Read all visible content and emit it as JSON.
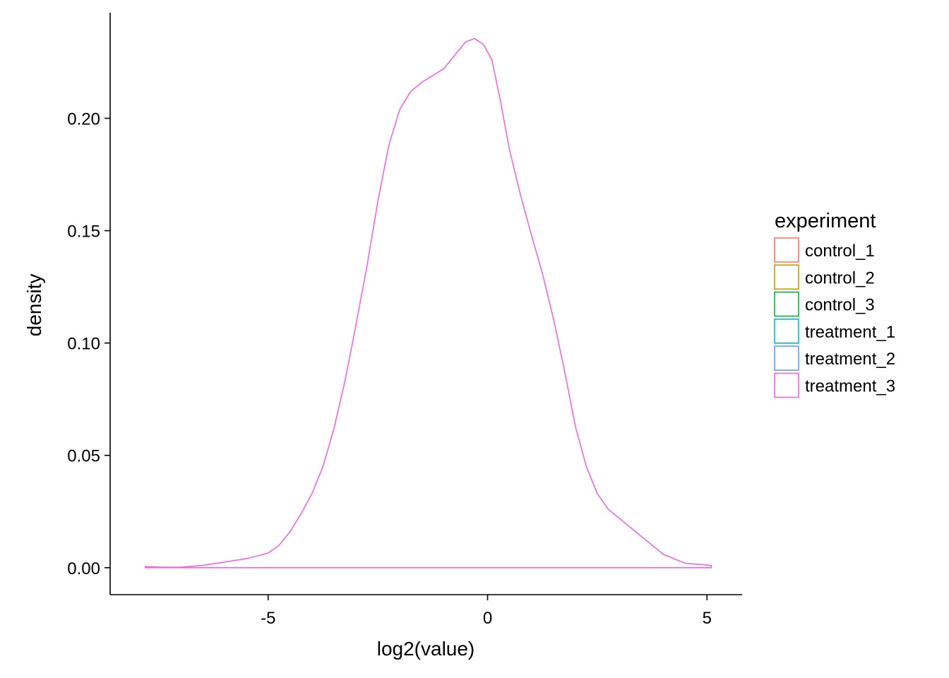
{
  "chart_data": {
    "type": "line",
    "xlabel": "log2(value)",
    "ylabel": "density",
    "xlim": [
      -8.6,
      5.8
    ],
    "ylim": [
      -0.012,
      0.247
    ],
    "x_ticks": [
      -5,
      0,
      5
    ],
    "x_tick_labels": [
      "-5",
      "0",
      "5"
    ],
    "y_ticks": [
      0.0,
      0.05,
      0.1,
      0.15,
      0.2
    ],
    "y_tick_labels": [
      "0.00",
      "0.05",
      "0.10",
      "0.15",
      "0.20"
    ],
    "grid": false,
    "legend": {
      "title": "experiment",
      "placement": "right",
      "entries": [
        {
          "name": "control_1",
          "color": "#F8766D"
        },
        {
          "name": "control_2",
          "color": "#B79F00"
        },
        {
          "name": "control_3",
          "color": "#00BA38"
        },
        {
          "name": "treatment_1",
          "color": "#00BFC4"
        },
        {
          "name": "treatment_2",
          "color": "#619CFF"
        },
        {
          "name": "treatment_3",
          "color": "#F564E3"
        }
      ]
    },
    "series": [
      {
        "name": "treatment_3",
        "color": "#F564E3",
        "x": [
          -7.8,
          -7.5,
          -7.0,
          -6.5,
          -6.0,
          -5.5,
          -5.0,
          -4.75,
          -4.5,
          -4.25,
          -4.0,
          -3.75,
          -3.5,
          -3.25,
          -3.0,
          -2.75,
          -2.5,
          -2.25,
          -2.0,
          -1.75,
          -1.5,
          -1.25,
          -1.0,
          -0.75,
          -0.5,
          -0.3,
          -0.1,
          0.1,
          0.3,
          0.5,
          0.75,
          1.0,
          1.25,
          1.5,
          1.75,
          2.0,
          2.25,
          2.5,
          2.75,
          3.0,
          3.5,
          4.0,
          4.5,
          5.1
        ],
        "values": [
          0.0005,
          0.0003,
          0.0002,
          0.001,
          0.0025,
          0.004,
          0.0065,
          0.01,
          0.016,
          0.024,
          0.033,
          0.045,
          0.062,
          0.083,
          0.108,
          0.134,
          0.163,
          0.188,
          0.204,
          0.212,
          0.216,
          0.219,
          0.222,
          0.228,
          0.234,
          0.2355,
          0.233,
          0.226,
          0.207,
          0.186,
          0.166,
          0.148,
          0.131,
          0.111,
          0.088,
          0.063,
          0.045,
          0.033,
          0.026,
          0.022,
          0.014,
          0.006,
          0.002,
          0.001
        ]
      }
    ]
  }
}
